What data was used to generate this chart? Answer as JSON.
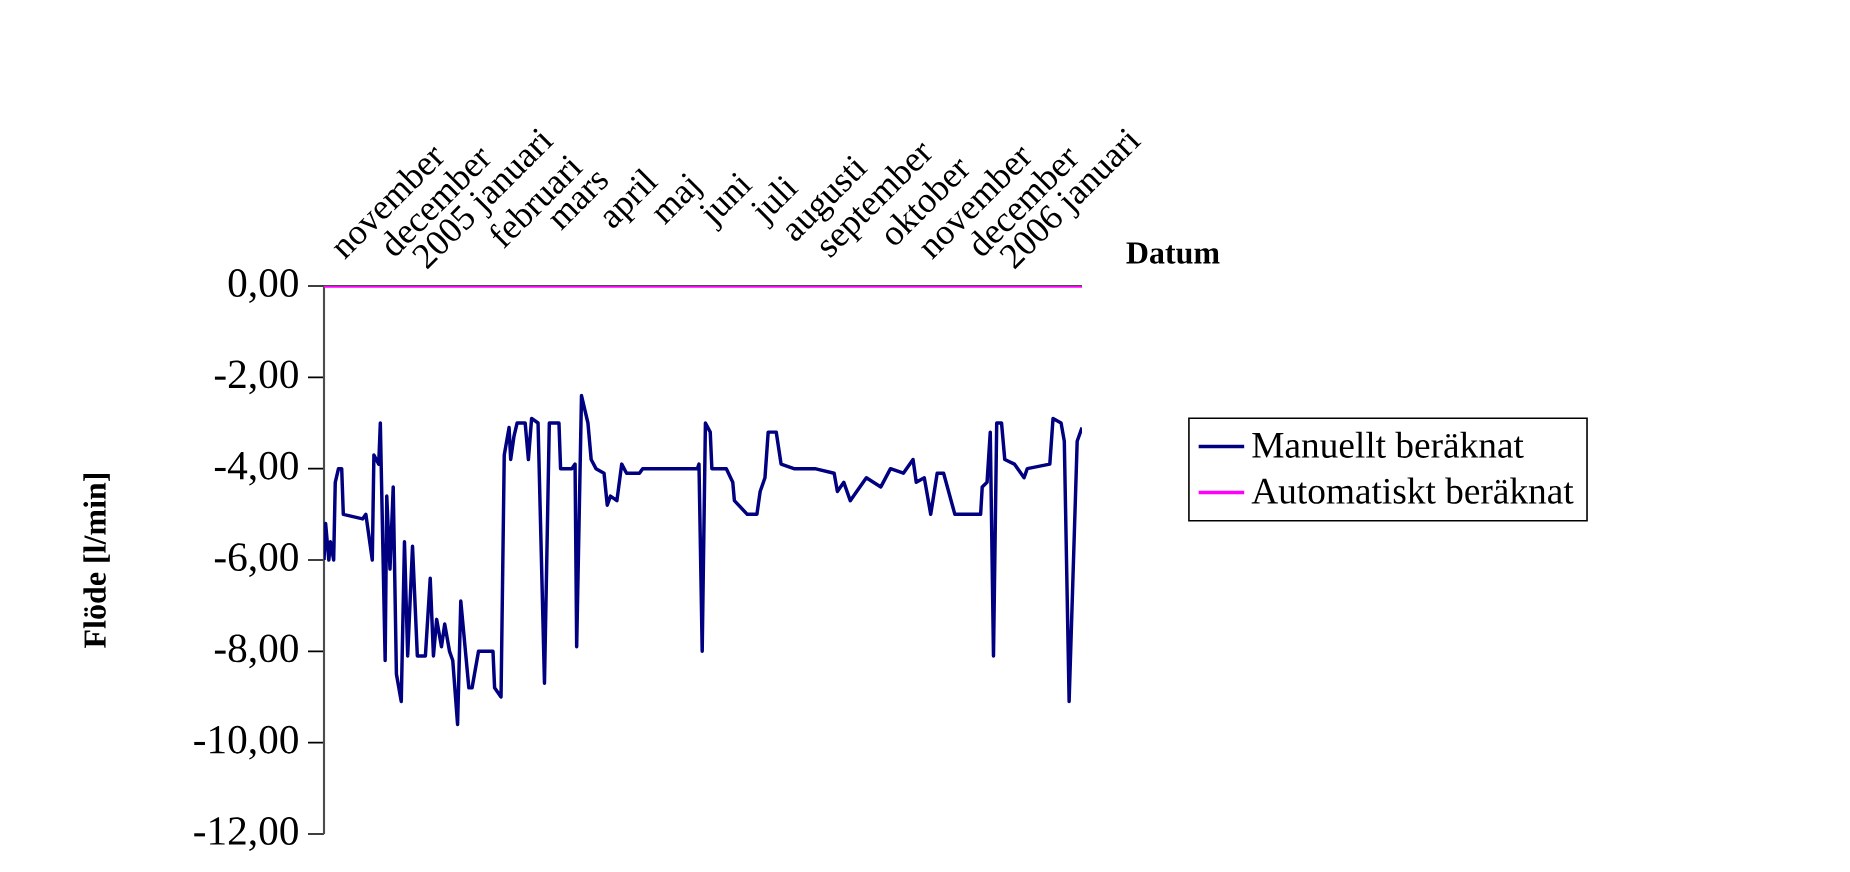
{
  "chart_data": {
    "type": "line",
    "xlabel": "Datum",
    "ylabel": "Flöde [l/min]",
    "xlim": [
      "2004-09-23",
      "2006-01-07"
    ],
    "ylim": [
      -12,
      0
    ],
    "xticks": [
      {
        "value": "2004-11-01",
        "label": "november"
      },
      {
        "value": "2004-12-01",
        "label": "december"
      },
      {
        "value": "2005-01-01",
        "label": "2005 januari"
      },
      {
        "value": "2005-02-01",
        "label": "februari"
      },
      {
        "value": "2005-03-01",
        "label": "mars"
      },
      {
        "value": "2005-04-01",
        "label": "april"
      },
      {
        "value": "2005-05-01",
        "label": "maj"
      },
      {
        "value": "2005-06-01",
        "label": "juni"
      },
      {
        "value": "2005-07-01",
        "label": "juli"
      },
      {
        "value": "2005-08-01",
        "label": "augusti"
      },
      {
        "value": "2005-09-01",
        "label": "september"
      },
      {
        "value": "2005-10-01",
        "label": "oktober"
      },
      {
        "value": "2005-11-01",
        "label": "november"
      },
      {
        "value": "2005-12-01",
        "label": "december"
      },
      {
        "value": "2006-01-01",
        "label": "2006 januari"
      }
    ],
    "yticks": [
      {
        "value": 0,
        "label": "0,00"
      },
      {
        "value": -2,
        "label": "-2,00"
      },
      {
        "value": -4,
        "label": "-4,00"
      },
      {
        "value": -6,
        "label": "-6,00"
      },
      {
        "value": -8,
        "label": "-8,00"
      },
      {
        "value": -10,
        "label": "-10,00"
      },
      {
        "value": -12,
        "label": "-12,00"
      }
    ],
    "legend": "right",
    "series": [
      {
        "name": "Manuellt beräknat",
        "color": "#000080",
        "x": [
          "2004-09-23",
          "2004-09-24",
          "2004-09-26",
          "2004-09-27",
          "2004-09-29",
          "2004-09-30",
          "2004-10-02",
          "2004-10-04",
          "2004-10-05",
          "2004-10-17",
          "2004-10-19",
          "2004-10-23",
          "2004-10-24",
          "2004-10-27",
          "2004-10-28",
          "2004-10-31",
          "2004-11-01",
          "2004-11-03",
          "2004-11-05",
          "2004-11-07",
          "2004-11-10",
          "2004-11-12",
          "2004-11-14",
          "2004-11-17",
          "2004-11-20",
          "2004-11-25",
          "2004-11-28",
          "2004-11-30",
          "2004-12-02",
          "2004-12-05",
          "2004-12-07",
          "2004-12-10",
          "2004-12-12",
          "2004-12-15",
          "2004-12-17",
          "2004-12-22",
          "2004-12-24",
          "2004-12-28",
          "2005-01-06",
          "2005-01-07",
          "2005-01-11",
          "2005-01-13",
          "2005-01-16",
          "2005-01-17",
          "2005-01-19",
          "2005-01-21",
          "2005-01-26",
          "2005-01-28",
          "2005-01-30",
          "2005-02-03",
          "2005-02-07",
          "2005-02-10",
          "2005-02-16",
          "2005-02-17",
          "2005-02-24",
          "2005-02-26",
          "2005-02-27",
          "2005-03-02",
          "2005-03-04",
          "2005-03-06",
          "2005-03-08",
          "2005-03-11",
          "2005-03-16",
          "2005-03-18",
          "2005-03-20",
          "2005-03-24",
          "2005-03-27",
          "2005-03-30",
          "2005-04-07",
          "2005-04-09",
          "2005-05-13",
          "2005-05-14",
          "2005-05-16",
          "2005-05-18",
          "2005-05-21",
          "2005-05-22",
          "2005-05-31",
          "2005-06-04",
          "2005-06-05",
          "2005-06-13",
          "2005-06-19",
          "2005-06-21",
          "2005-06-24",
          "2005-06-26",
          "2005-07-01",
          "2005-07-04",
          "2005-07-12",
          "2005-07-25",
          "2005-08-06",
          "2005-08-08",
          "2005-08-12",
          "2005-08-16",
          "2005-08-20",
          "2005-08-26",
          "2005-09-04",
          "2005-09-10",
          "2005-09-18",
          "2005-09-24",
          "2005-09-26",
          "2005-10-01",
          "2005-10-05",
          "2005-10-09",
          "2005-10-13",
          "2005-10-20",
          "2005-11-05",
          "2005-11-06",
          "2005-11-09",
          "2005-11-11",
          "2005-11-13",
          "2005-11-15",
          "2005-11-18",
          "2005-11-20",
          "2005-11-26",
          "2005-12-02",
          "2005-12-04",
          "2005-12-18",
          "2005-12-20",
          "2005-12-25",
          "2005-12-27",
          "2005-12-30",
          "2006-01-04",
          "2006-01-07"
        ],
        "values": [
          -6.0,
          -5.2,
          -6.0,
          -5.6,
          -6.0,
          -4.3,
          -4.0,
          -4.0,
          -5.0,
          -5.1,
          -5.0,
          -6.0,
          -3.7,
          -3.9,
          -3.0,
          -8.2,
          -4.6,
          -6.2,
          -4.4,
          -8.5,
          -9.1,
          -5.6,
          -8.1,
          -5.7,
          -8.1,
          -8.1,
          -6.4,
          -8.1,
          -7.3,
          -7.9,
          -7.4,
          -8.0,
          -8.2,
          -9.6,
          -6.9,
          -8.8,
          -8.8,
          -8.0,
          -8.0,
          -8.8,
          -9.0,
          -3.7,
          -3.1,
          -3.8,
          -3.3,
          -3.0,
          -3.0,
          -3.8,
          -2.9,
          -3.0,
          -8.7,
          -3.0,
          -3.0,
          -4.0,
          -4.0,
          -3.9,
          -7.9,
          -2.4,
          -2.7,
          -3.0,
          -3.8,
          -4.0,
          -4.1,
          -4.8,
          -4.6,
          -4.7,
          -3.9,
          -4.1,
          -4.1,
          -4.0,
          -4.0,
          -3.9,
          -8.0,
          -3.0,
          -3.2,
          -4.0,
          -4.0,
          -4.3,
          -4.7,
          -5.0,
          -5.0,
          -4.5,
          -4.2,
          -3.2,
          -3.2,
          -3.9,
          -4.0,
          -4.0,
          -4.1,
          -4.5,
          -4.3,
          -4.7,
          -4.5,
          -4.2,
          -4.4,
          -4.0,
          -4.1,
          -3.8,
          -4.3,
          -4.2,
          -5.0,
          -4.1,
          -4.1,
          -5.0,
          -5.0,
          -4.4,
          -4.3,
          -3.2,
          -8.1,
          -3.0,
          -3.0,
          -3.8,
          -3.9,
          -4.2,
          -4.0,
          -3.9,
          -2.9,
          -3.0,
          -3.4,
          -9.1,
          -3.4,
          -3.1
        ]
      },
      {
        "name": "Automatiskt beräknat",
        "color": "#ff00ff",
        "x": [
          "2004-09-23",
          "2006-01-07"
        ],
        "values": [
          0,
          0
        ]
      }
    ]
  }
}
